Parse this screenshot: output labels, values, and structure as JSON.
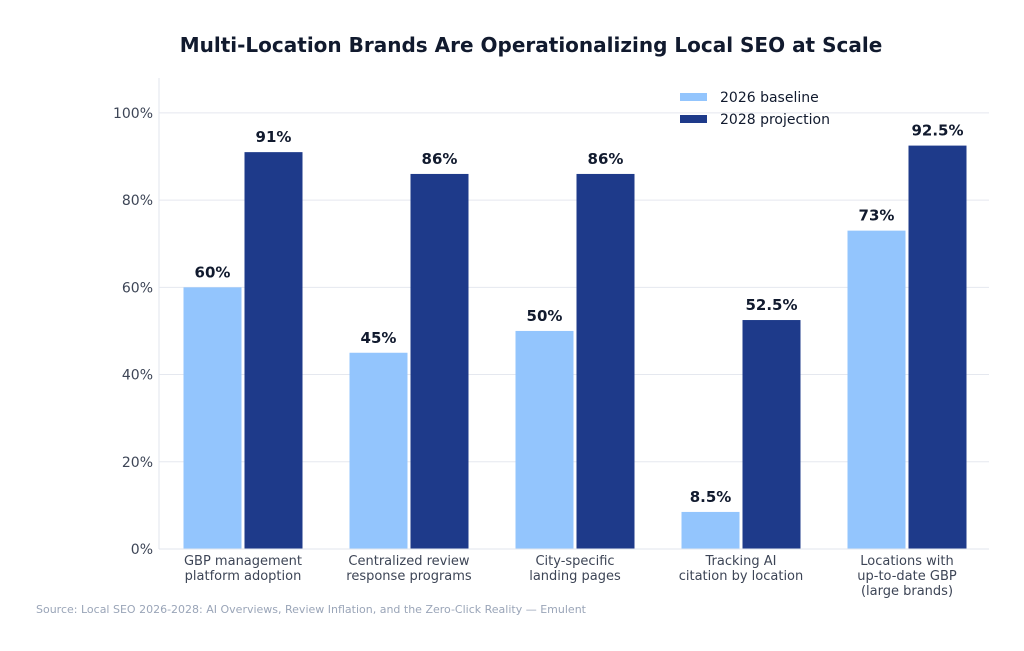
{
  "chart_data": {
    "type": "bar",
    "title": "Multi-Location Brands Are Operationalizing Local SEO at Scale",
    "xlabel": "",
    "ylabel": "",
    "ylim": [
      0,
      108
    ],
    "yticks": [
      "0%",
      "20%",
      "40%",
      "60%",
      "80%",
      "100%"
    ],
    "ytick_values": [
      0,
      20,
      40,
      60,
      80,
      100
    ],
    "grid": true,
    "legend_placement": "top-right",
    "categories": [
      [
        "GBP management",
        "platform adoption"
      ],
      [
        "Centralized review",
        "response programs"
      ],
      [
        "City-specific",
        "landing pages"
      ],
      [
        "Tracking AI",
        "citation by location"
      ],
      [
        "Locations with",
        "up-to-date GBP",
        "(large brands)"
      ]
    ],
    "series": [
      {
        "name": "2026 baseline",
        "color": "#93c5fd",
        "values": [
          60,
          45,
          50,
          8.5,
          73
        ],
        "labels": [
          "60%",
          "45%",
          "50%",
          "8.5%",
          "73%"
        ]
      },
      {
        "name": "2028 projection",
        "color": "#1e3a8a",
        "values": [
          91,
          86,
          86,
          52.5,
          92.5
        ],
        "labels": [
          "91%",
          "86%",
          "86%",
          "52.5%",
          "92.5%"
        ]
      }
    ],
    "source": "Source: Local SEO 2026-2028: AI Overviews, Review Inflation, and the Zero-Click Reality — Emulent"
  }
}
